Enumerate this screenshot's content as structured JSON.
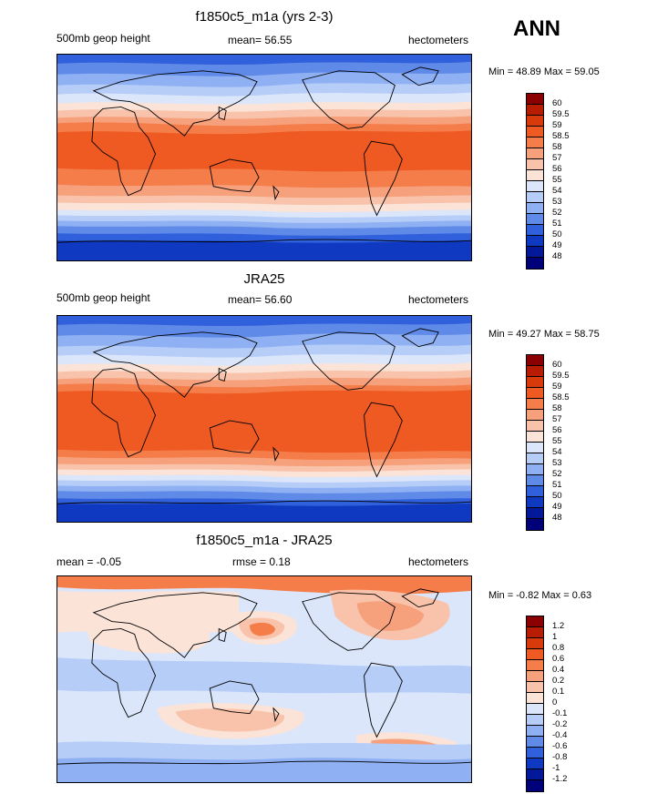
{
  "season": "ANN",
  "panels": [
    {
      "title": "f1850c5_m1a (yrs 2-3)",
      "left_label": "500mb geop height",
      "center_label": "mean=  56.55",
      "units": "hectometers",
      "minmax": "Min =  48.89 Max =  59.05",
      "levels": [
        "60",
        "59.5",
        "59",
        "58.5",
        "58",
        "57",
        "56",
        "55",
        "54",
        "53",
        "52",
        "51",
        "50",
        "49",
        "48"
      ]
    },
    {
      "title": "JRA25",
      "left_label": "500mb geop height",
      "center_label": "mean=  56.60",
      "units": "hectometers",
      "minmax": "Min =  49.27 Max =  58.75",
      "levels": [
        "60",
        "59.5",
        "59",
        "58.5",
        "58",
        "57",
        "56",
        "55",
        "54",
        "53",
        "52",
        "51",
        "50",
        "49",
        "48"
      ]
    },
    {
      "title": "f1850c5_m1a - JRA25",
      "left_label": "mean =  -0.05",
      "center_label": "rmse =   0.18",
      "units": "hectometers",
      "minmax": "Min =  -0.82 Max =   0.63",
      "levels": [
        "1.2",
        "1",
        "0.8",
        "0.6",
        "0.4",
        "0.2",
        "0.1",
        "0",
        "-0.1",
        "-0.2",
        "-0.4",
        "-0.6",
        "-0.8",
        "-1",
        "-1.2"
      ]
    }
  ],
  "colors": {
    "scale": [
      "#8b0000",
      "#b81d04",
      "#d83a0c",
      "#ee5a22",
      "#f47d4a",
      "#f6a07c",
      "#f8c3aa",
      "#fbe3d7",
      "#dbe6fb",
      "#b6cdf8",
      "#8fb0f2",
      "#5f8ae7",
      "#3060db",
      "#0f39c0",
      "#04189a",
      "#000078"
    ]
  }
}
